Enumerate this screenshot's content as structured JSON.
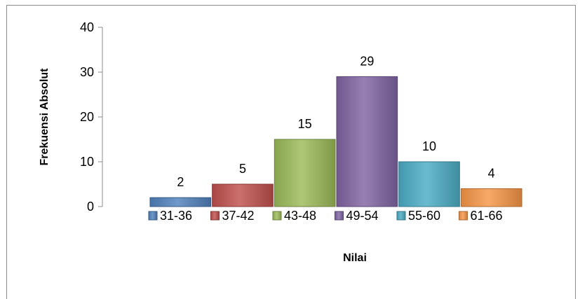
{
  "chart_data": {
    "type": "bar",
    "title": "",
    "xlabel": "Nilai",
    "ylabel": "Frekuensi Absolut",
    "ylim": [
      0,
      40
    ],
    "yticks": [
      "0",
      "10",
      "20",
      "30",
      "40"
    ],
    "grid": false,
    "legend_position": "bottom",
    "bar_layout": "histogram",
    "categories": [
      "31-36",
      "37-42",
      "43-48",
      "49-54",
      "55-60",
      "61-66"
    ],
    "values": [
      2,
      5,
      15,
      29,
      10,
      4
    ],
    "colors": [
      "#4f81bd",
      "#c0504d",
      "#9bbb59",
      "#8064a2",
      "#4bacc6",
      "#f79646"
    ],
    "data_labels": [
      "2",
      "5",
      "15",
      "29",
      "10",
      "4"
    ]
  }
}
